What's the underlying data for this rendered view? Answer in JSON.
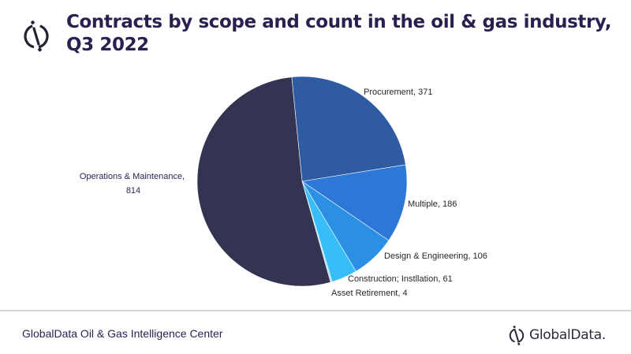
{
  "header": {
    "title": "Contracts by scope and count in the oil & gas industry, Q3 2022",
    "logo_icon": "globaldata-mark-icon"
  },
  "footer": {
    "source": "GlobalData Oil & Gas Intelligence Center",
    "brand": "GlobalData."
  },
  "colors": {
    "title": "#2b1f50",
    "procurement": "#2f5ba3",
    "multiple": "#2d78d6",
    "design_engineering": "#2b90e4",
    "construction_installation": "#38bdf8",
    "asset_retirement": "#a8dcf5",
    "operations_maintenance": "#333352"
  },
  "chart_data": {
    "type": "pie",
    "title": "Contracts by scope and count in the oil & gas industry, Q3 2022",
    "categories": [
      "Procurement",
      "Multiple",
      "Design & Engineering",
      "Construction; Instllation",
      "Asset Retirement",
      "Operations & Maintenance"
    ],
    "values": [
      371,
      186,
      106,
      61,
      4,
      814
    ],
    "labels": [
      "Procurement, 371",
      "Multiple, 186",
      "Design & Engineering, 106",
      "Construction; Instllation, 61",
      "Asset Retirement, 4",
      "Operations & Maintenance, 814"
    ],
    "legend": "none (data labels outside slices)",
    "start_angle_deg": -5.7,
    "direction": "clockwise"
  }
}
